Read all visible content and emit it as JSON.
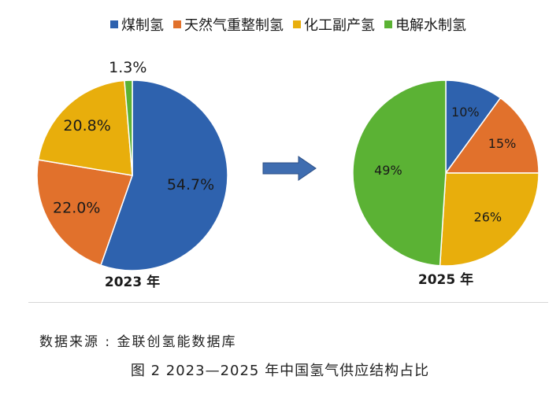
{
  "chart_data": [
    {
      "type": "pie",
      "year_label": "2023 年",
      "slices": [
        {
          "name": "煤制氢",
          "value": 54.7,
          "label": "54.7%"
        },
        {
          "name": "天然气重整制氢",
          "value": 22.0,
          "label": "22.0%"
        },
        {
          "name": "化工副产氢",
          "value": 20.8,
          "label": "20.8%"
        },
        {
          "name": "电解水制氢",
          "value": 1.3,
          "label": "1.3%"
        }
      ]
    },
    {
      "type": "pie",
      "year_label": "2025 年",
      "slices": [
        {
          "name": "煤制氢",
          "value": 10,
          "label": "10%"
        },
        {
          "name": "天然气重整制氢",
          "value": 15,
          "label": "15%"
        },
        {
          "name": "化工副产氢",
          "value": 26,
          "label": "26%"
        },
        {
          "name": "电解水制氢",
          "value": 49,
          "label": "49%"
        }
      ]
    }
  ],
  "legend": [
    {
      "label": "煤制氢",
      "color": "#2E62AE"
    },
    {
      "label": "天然气重整制氢",
      "color": "#E1712C"
    },
    {
      "label": "化工副产氢",
      "color": "#E8AE0C"
    },
    {
      "label": "电解水制氢",
      "color": "#5BB234"
    }
  ],
  "arrow_color": "#3F6DB0",
  "source_text": "数据来源 : 金联创氢能数据库",
  "caption": "图 2  2023—2025 年中国氢气供应结构占比"
}
